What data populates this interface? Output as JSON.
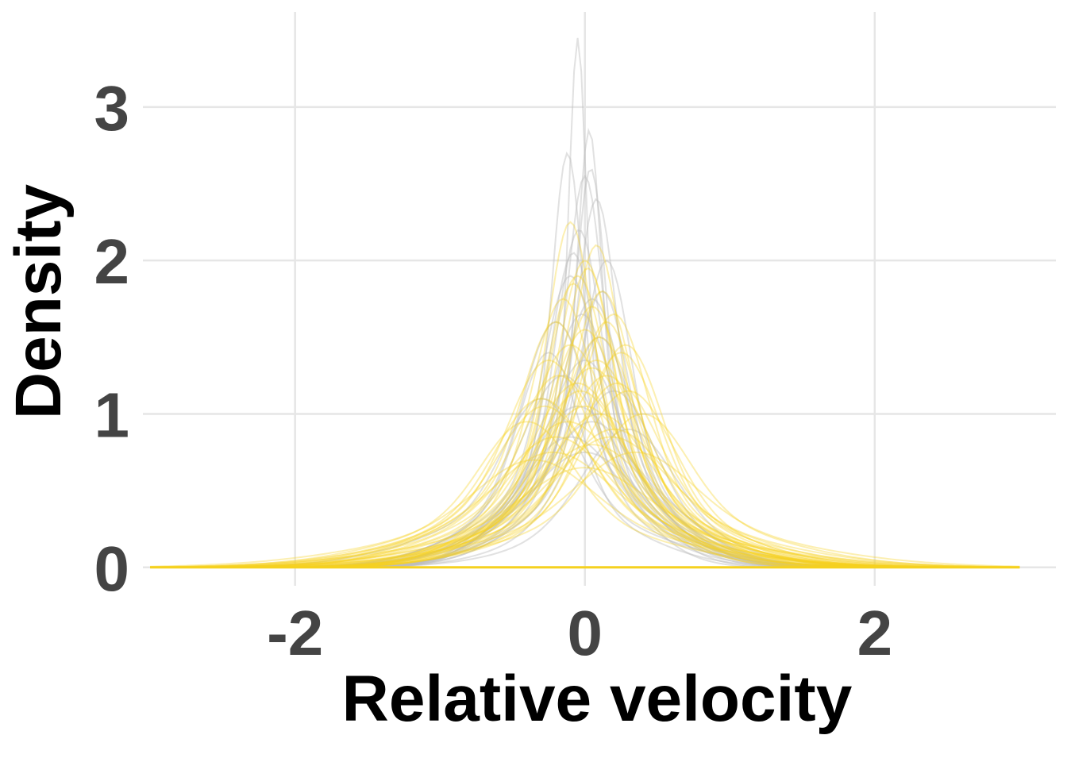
{
  "chart_data": {
    "type": "line",
    "title": "",
    "xlabel": "Relative velocity",
    "ylabel": "Density",
    "xlim": [
      -3.05,
      3.25
    ],
    "ylim": [
      -0.12,
      3.62
    ],
    "x_ticks": [
      -2,
      0,
      2
    ],
    "x_tick_labels": [
      "-2",
      "0",
      "2"
    ],
    "y_ticks": [
      0,
      1,
      2,
      3
    ],
    "y_tick_labels": [
      "0",
      "1",
      "2",
      "3"
    ],
    "grid": true,
    "legend": "none",
    "colors": {
      "grey_series": "#bdbdbd",
      "yellow_series": "#f5d11f",
      "grid": "#e6e6e6",
      "tick_text": "#444444",
      "axis_title": "#000000"
    },
    "x_range_of_curves": [
      -3.0,
      3.0
    ],
    "series": [
      {
        "group": "grey",
        "peak_x": -0.05,
        "peak_y": 3.45,
        "width": 0.06,
        "tail_weight": 0.25,
        "tail_width": 0.4
      },
      {
        "group": "grey",
        "peak_x": 0.03,
        "peak_y": 2.85,
        "width": 0.08,
        "tail_weight": 0.3,
        "tail_width": 0.45
      },
      {
        "group": "grey",
        "peak_x": -0.12,
        "peak_y": 2.7,
        "width": 0.1,
        "tail_weight": 0.3,
        "tail_width": 0.4
      },
      {
        "group": "grey",
        "peak_x": 0.0,
        "peak_y": 2.55,
        "width": 0.12,
        "tail_weight": 0.3,
        "tail_width": 0.45
      },
      {
        "group": "grey",
        "peak_x": 0.08,
        "peak_y": 2.4,
        "width": 0.13,
        "tail_weight": 0.3,
        "tail_width": 0.5
      },
      {
        "group": "grey",
        "peak_x": -0.04,
        "peak_y": 2.2,
        "width": 0.15,
        "tail_weight": 0.3,
        "tail_width": 0.45
      },
      {
        "group": "grey",
        "peak_x": 0.15,
        "peak_y": 2.0,
        "width": 0.16,
        "tail_weight": 0.3,
        "tail_width": 0.5
      },
      {
        "group": "grey",
        "peak_x": -0.1,
        "peak_y": 1.9,
        "width": 0.18,
        "tail_weight": 0.3,
        "tail_width": 0.55
      },
      {
        "group": "grey",
        "peak_x": 0.05,
        "peak_y": 1.75,
        "width": 0.2,
        "tail_weight": 0.3,
        "tail_width": 0.5
      },
      {
        "group": "grey",
        "peak_x": -0.2,
        "peak_y": 1.6,
        "width": 0.22,
        "tail_weight": 0.3,
        "tail_width": 0.55
      },
      {
        "group": "grey",
        "peak_x": 0.1,
        "peak_y": 1.5,
        "width": 0.22,
        "tail_weight": 0.3,
        "tail_width": 0.55
      },
      {
        "group": "grey",
        "peak_x": 0.0,
        "peak_y": 1.35,
        "width": 0.25,
        "tail_weight": 0.3,
        "tail_width": 0.6
      },
      {
        "group": "grey",
        "peak_x": -0.15,
        "peak_y": 1.25,
        "width": 0.26,
        "tail_weight": 0.35,
        "tail_width": 0.6
      },
      {
        "group": "grey",
        "peak_x": 0.2,
        "peak_y": 1.15,
        "width": 0.27,
        "tail_weight": 0.3,
        "tail_width": 0.55
      },
      {
        "group": "grey",
        "peak_x": -0.05,
        "peak_y": 1.05,
        "width": 0.3,
        "tail_weight": 0.3,
        "tail_width": 0.65
      },
      {
        "group": "grey",
        "peak_x": 0.05,
        "peak_y": 0.95,
        "width": 0.3,
        "tail_weight": 0.3,
        "tail_width": 0.6
      },
      {
        "group": "grey",
        "peak_x": -0.3,
        "peak_y": 1.1,
        "width": 0.25,
        "tail_weight": 0.35,
        "tail_width": 0.7
      },
      {
        "group": "grey",
        "peak_x": 0.3,
        "peak_y": 0.9,
        "width": 0.3,
        "tail_weight": 0.3,
        "tail_width": 0.6
      },
      {
        "group": "grey",
        "peak_x": -0.1,
        "peak_y": 0.85,
        "width": 0.32,
        "tail_weight": 0.3,
        "tail_width": 0.65
      },
      {
        "group": "grey",
        "peak_x": 0.0,
        "peak_y": 0.75,
        "width": 0.35,
        "tail_weight": 0.3,
        "tail_width": 0.7
      },
      {
        "group": "grey",
        "peak_x": -0.25,
        "peak_y": 1.4,
        "width": 0.2,
        "tail_weight": 0.3,
        "tail_width": 0.55
      },
      {
        "group": "grey",
        "peak_x": 0.12,
        "peak_y": 1.8,
        "width": 0.17,
        "tail_weight": 0.3,
        "tail_width": 0.5
      },
      {
        "group": "grey",
        "peak_x": -0.08,
        "peak_y": 2.05,
        "width": 0.15,
        "tail_weight": 0.3,
        "tail_width": 0.5
      },
      {
        "group": "grey",
        "peak_x": 0.04,
        "peak_y": 2.6,
        "width": 0.1,
        "tail_weight": 0.3,
        "tail_width": 0.45
      },
      {
        "group": "grey",
        "peak_x": -0.02,
        "peak_y": 1.65,
        "width": 0.2,
        "tail_weight": 0.35,
        "tail_width": 0.55
      },
      {
        "group": "yellow",
        "peak_x": -0.1,
        "peak_y": 2.25,
        "width": 0.15,
        "tail_weight": 0.3,
        "tail_width": 0.5
      },
      {
        "group": "yellow",
        "peak_x": 0.08,
        "peak_y": 2.1,
        "width": 0.16,
        "tail_weight": 0.3,
        "tail_width": 0.55
      },
      {
        "group": "yellow",
        "peak_x": 0.0,
        "peak_y": 2.0,
        "width": 0.18,
        "tail_weight": 0.3,
        "tail_width": 0.5
      },
      {
        "group": "yellow",
        "peak_x": -0.05,
        "peak_y": 1.9,
        "width": 0.19,
        "tail_weight": 0.3,
        "tail_width": 0.55
      },
      {
        "group": "yellow",
        "peak_x": 0.12,
        "peak_y": 1.8,
        "width": 0.2,
        "tail_weight": 0.3,
        "tail_width": 0.6
      },
      {
        "group": "yellow",
        "peak_x": -0.15,
        "peak_y": 1.75,
        "width": 0.2,
        "tail_weight": 0.3,
        "tail_width": 0.55
      },
      {
        "group": "yellow",
        "peak_x": 0.05,
        "peak_y": 1.7,
        "width": 0.21,
        "tail_weight": 0.3,
        "tail_width": 0.6
      },
      {
        "group": "yellow",
        "peak_x": 0.2,
        "peak_y": 1.65,
        "width": 0.22,
        "tail_weight": 0.3,
        "tail_width": 0.6
      },
      {
        "group": "yellow",
        "peak_x": -0.2,
        "peak_y": 1.6,
        "width": 0.22,
        "tail_weight": 0.35,
        "tail_width": 0.65
      },
      {
        "group": "yellow",
        "peak_x": 0.0,
        "peak_y": 1.55,
        "width": 0.23,
        "tail_weight": 0.3,
        "tail_width": 0.6
      },
      {
        "group": "yellow",
        "peak_x": 0.1,
        "peak_y": 1.5,
        "width": 0.24,
        "tail_weight": 0.3,
        "tail_width": 0.65
      },
      {
        "group": "yellow",
        "peak_x": -0.1,
        "peak_y": 1.45,
        "width": 0.25,
        "tail_weight": 0.35,
        "tail_width": 0.7
      },
      {
        "group": "yellow",
        "peak_x": 0.25,
        "peak_y": 1.4,
        "width": 0.25,
        "tail_weight": 0.3,
        "tail_width": 0.65
      },
      {
        "group": "yellow",
        "peak_x": -0.25,
        "peak_y": 1.35,
        "width": 0.26,
        "tail_weight": 0.35,
        "tail_width": 0.7
      },
      {
        "group": "yellow",
        "peak_x": 0.05,
        "peak_y": 1.3,
        "width": 0.27,
        "tail_weight": 0.3,
        "tail_width": 0.7
      },
      {
        "group": "yellow",
        "peak_x": 0.15,
        "peak_y": 1.25,
        "width": 0.28,
        "tail_weight": 0.3,
        "tail_width": 0.7
      },
      {
        "group": "yellow",
        "peak_x": -0.05,
        "peak_y": 1.2,
        "width": 0.29,
        "tail_weight": 0.35,
        "tail_width": 0.75
      },
      {
        "group": "yellow",
        "peak_x": 0.3,
        "peak_y": 1.15,
        "width": 0.3,
        "tail_weight": 0.3,
        "tail_width": 0.7
      },
      {
        "group": "yellow",
        "peak_x": -0.3,
        "peak_y": 1.1,
        "width": 0.3,
        "tail_weight": 0.35,
        "tail_width": 0.75
      },
      {
        "group": "yellow",
        "peak_x": 0.0,
        "peak_y": 1.05,
        "width": 0.31,
        "tail_weight": 0.3,
        "tail_width": 0.75
      },
      {
        "group": "yellow",
        "peak_x": 0.1,
        "peak_y": 1.0,
        "width": 0.32,
        "tail_weight": 0.35,
        "tail_width": 0.8
      },
      {
        "group": "yellow",
        "peak_x": -0.12,
        "peak_y": 0.95,
        "width": 0.33,
        "tail_weight": 0.35,
        "tail_width": 0.8
      },
      {
        "group": "yellow",
        "peak_x": 0.2,
        "peak_y": 0.9,
        "width": 0.34,
        "tail_weight": 0.35,
        "tail_width": 0.85
      },
      {
        "group": "yellow",
        "peak_x": -0.2,
        "peak_y": 0.85,
        "width": 0.35,
        "tail_weight": 0.35,
        "tail_width": 0.85
      },
      {
        "group": "yellow",
        "peak_x": 0.05,
        "peak_y": 0.8,
        "width": 0.36,
        "tail_weight": 0.35,
        "tail_width": 0.9
      },
      {
        "group": "yellow",
        "peak_x": 0.35,
        "peak_y": 0.75,
        "width": 0.38,
        "tail_weight": 0.4,
        "tail_width": 0.95
      },
      {
        "group": "yellow",
        "peak_x": -0.35,
        "peak_y": 0.7,
        "width": 0.38,
        "tail_weight": 0.4,
        "tail_width": 0.95
      },
      {
        "group": "yellow",
        "peak_x": 0.0,
        "peak_y": 0.65,
        "width": 0.4,
        "tail_weight": 0.4,
        "tail_width": 1.0
      },
      {
        "group": "yellow",
        "peak_x": 0.15,
        "peak_y": 1.6,
        "width": 0.2,
        "tail_weight": 0.3,
        "tail_width": 0.6
      },
      {
        "group": "yellow",
        "peak_x": -0.08,
        "peak_y": 1.85,
        "width": 0.18,
        "tail_weight": 0.3,
        "tail_width": 0.55
      },
      {
        "group": "yellow",
        "peak_x": 0.4,
        "peak_y": 1.0,
        "width": 0.3,
        "tail_weight": 0.35,
        "tail_width": 0.8
      },
      {
        "group": "yellow",
        "peak_x": -0.4,
        "peak_y": 0.95,
        "width": 0.3,
        "tail_weight": 0.35,
        "tail_width": 0.8
      },
      {
        "group": "yellow",
        "peak_x": 0.08,
        "peak_y": 1.35,
        "width": 0.26,
        "tail_weight": 0.35,
        "tail_width": 0.7
      },
      {
        "group": "yellow",
        "peak_x": -0.03,
        "peak_y": 1.15,
        "width": 0.28,
        "tail_weight": 0.35,
        "tail_width": 0.75
      },
      {
        "group": "yellow",
        "peak_x": 0.22,
        "peak_y": 1.2,
        "width": 0.27,
        "tail_weight": 0.35,
        "tail_width": 0.75
      },
      {
        "group": "yellow",
        "peak_x": -0.18,
        "peak_y": 1.25,
        "width": 0.27,
        "tail_weight": 0.35,
        "tail_width": 0.75
      },
      {
        "group": "yellow",
        "peak_x": 0.28,
        "peak_y": 1.45,
        "width": 0.24,
        "tail_weight": 0.3,
        "tail_width": 0.65
      },
      {
        "group": "yellow",
        "peak_x": -0.28,
        "peak_y": 1.05,
        "width": 0.3,
        "tail_weight": 0.35,
        "tail_width": 0.8
      },
      {
        "group": "yellow",
        "peak_x": 0.02,
        "peak_y": 1.95,
        "width": 0.17,
        "tail_weight": 0.3,
        "tail_width": 0.55
      },
      {
        "group": "yellow",
        "peak_x": 0.18,
        "peak_y": 0.85,
        "width": 0.36,
        "tail_weight": 0.4,
        "tail_width": 0.9
      },
      {
        "group": "yellow",
        "peak_x": -0.22,
        "peak_y": 0.75,
        "width": 0.38,
        "tail_weight": 0.4,
        "tail_width": 0.9
      }
    ]
  }
}
